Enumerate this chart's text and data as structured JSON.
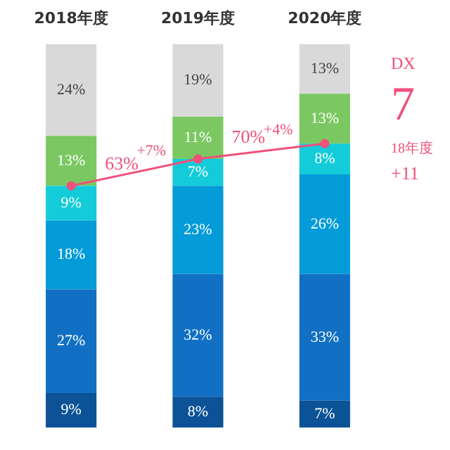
{
  "chart_data": {
    "type": "bar",
    "stacked": true,
    "categories": [
      "2018年度",
      "2019年度",
      "2020年度"
    ],
    "series": [
      {
        "color": "#0b5296",
        "values": [
          9,
          8,
          7
        ],
        "value_labels": [
          "9%",
          "8%",
          "7%"
        ]
      },
      {
        "color": "#1170c4",
        "values": [
          27,
          32,
          33
        ],
        "value_labels": [
          "27%",
          "32%",
          "33%"
        ]
      },
      {
        "color": "#039bd8",
        "values": [
          18,
          23,
          26
        ],
        "value_labels": [
          "18%",
          "23%",
          "26%"
        ]
      },
      {
        "color": "#14cbd9",
        "values": [
          9,
          7,
          8
        ],
        "value_labels": [
          "9%",
          "7%",
          "8%"
        ]
      },
      {
        "color": "#7bc862",
        "values": [
          13,
          11,
          13
        ],
        "value_labels": [
          "13%",
          "11%",
          "13%"
        ]
      },
      {
        "color": "#d9d9d9",
        "values": [
          24,
          19,
          13
        ],
        "value_labels": [
          "24%",
          "19%",
          "13%"
        ]
      },
      {
        "type": "line",
        "color": "#f0507a",
        "values": [
          63,
          70,
          74
        ],
        "value_labels": [
          "63%",
          "70%",
          null
        ]
      }
    ],
    "tick_labels": "x",
    "marker": "circle",
    "legend": false,
    "annotations": [
      "+7%",
      "+4%",
      "DX",
      "7",
      "18年度",
      "+11"
    ]
  }
}
